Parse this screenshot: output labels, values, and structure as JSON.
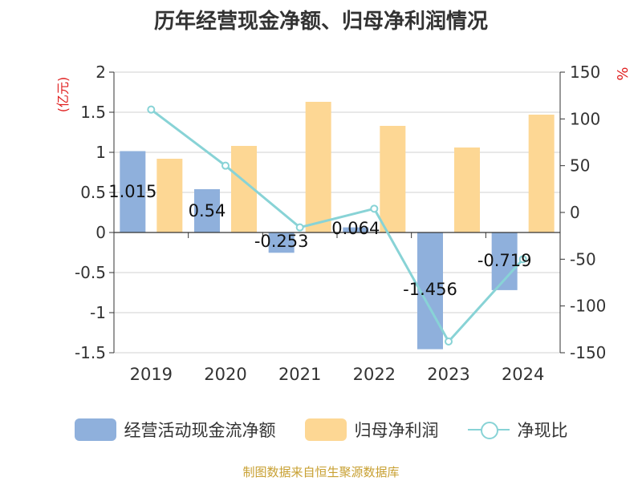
{
  "chart_data": {
    "type": "bar",
    "title": "历年经营现金净额、归母净利润情况",
    "categories": [
      "2019",
      "2020",
      "2021",
      "2022",
      "2023",
      "2024"
    ],
    "series": [
      {
        "name": "经营活动现金流净额",
        "type": "bar",
        "axis": "left",
        "color": "#8fb0dc",
        "values": [
          1.015,
          0.54,
          -0.253,
          0.064,
          -1.456,
          -0.719
        ]
      },
      {
        "name": "归母净利润",
        "type": "bar",
        "axis": "left",
        "color": "#fdd794",
        "values": [
          0.92,
          1.08,
          1.63,
          1.33,
          1.06,
          1.47
        ]
      },
      {
        "name": "净现比",
        "type": "line",
        "axis": "right",
        "color": "#88d3d6",
        "values": [
          110,
          50,
          -16,
          4,
          -138,
          -50
        ]
      }
    ],
    "data_labels": [
      "1.015",
      "0.54",
      "-0.253",
      "0.064",
      "-1.456",
      "-0.719"
    ],
    "ylabel_left": "(亿元)",
    "ylabel_right": "%",
    "ylim_left": [
      -1.5,
      2
    ],
    "ylim_right": [
      -150,
      150
    ],
    "yticks_left": [
      "2",
      "1.5",
      "1",
      "0.5",
      "0",
      "-0.5",
      "-1",
      "-1.5"
    ],
    "yticks_right": [
      "150",
      "100",
      "50",
      "0",
      "-50",
      "-100",
      "-150"
    ],
    "grid": true,
    "legend_position": "bottom"
  },
  "legend": {
    "items": [
      "经营活动现金流净额",
      "归母净利润",
      "净现比"
    ]
  },
  "source": "制图数据来自恒生聚源数据库"
}
